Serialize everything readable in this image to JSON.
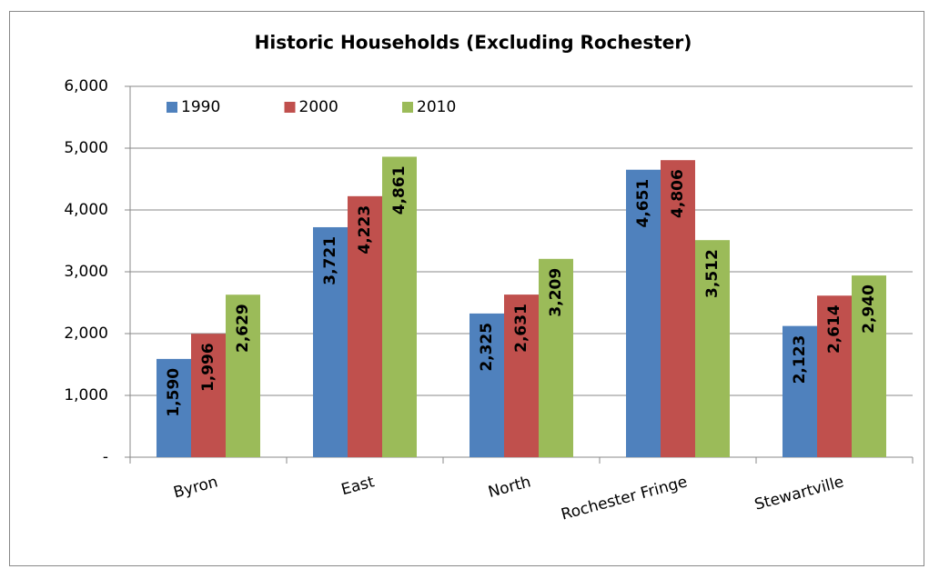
{
  "chart_data": {
    "type": "bar",
    "title": "Historic Households (Excluding Rochester)",
    "categories": [
      "Byron",
      "East",
      "North",
      "Rochester Fringe",
      "Stewartville"
    ],
    "series": [
      {
        "name": "1990",
        "color": "#4f81bd",
        "values": [
          1590,
          3721,
          2325,
          4651,
          2123
        ],
        "value_labels": [
          "1,590",
          "3,721",
          "2,325",
          "4,651",
          "2,123"
        ]
      },
      {
        "name": "2000",
        "color": "#c0504d",
        "values": [
          1996,
          4223,
          2631,
          4806,
          2614
        ],
        "value_labels": [
          "1,996",
          "4,223",
          "2,631",
          "4,806",
          "2,614"
        ]
      },
      {
        "name": "2010",
        "color": "#9bbb59",
        "values": [
          2629,
          4861,
          3209,
          3512,
          2940
        ],
        "value_labels": [
          "2,629",
          "4,861",
          "3,209",
          "3,512",
          "2,940"
        ]
      }
    ],
    "ylim": [
      0,
      6000
    ],
    "yticks": [
      {
        "value": 0,
        "label": "-"
      },
      {
        "value": 1000,
        "label": "1,000"
      },
      {
        "value": 2000,
        "label": "2,000"
      },
      {
        "value": 3000,
        "label": "3,000"
      },
      {
        "value": 4000,
        "label": "4,000"
      },
      {
        "value": 5000,
        "label": "5,000"
      },
      {
        "value": 6000,
        "label": "6,000"
      }
    ],
    "grid": true,
    "legend": "top-left"
  }
}
